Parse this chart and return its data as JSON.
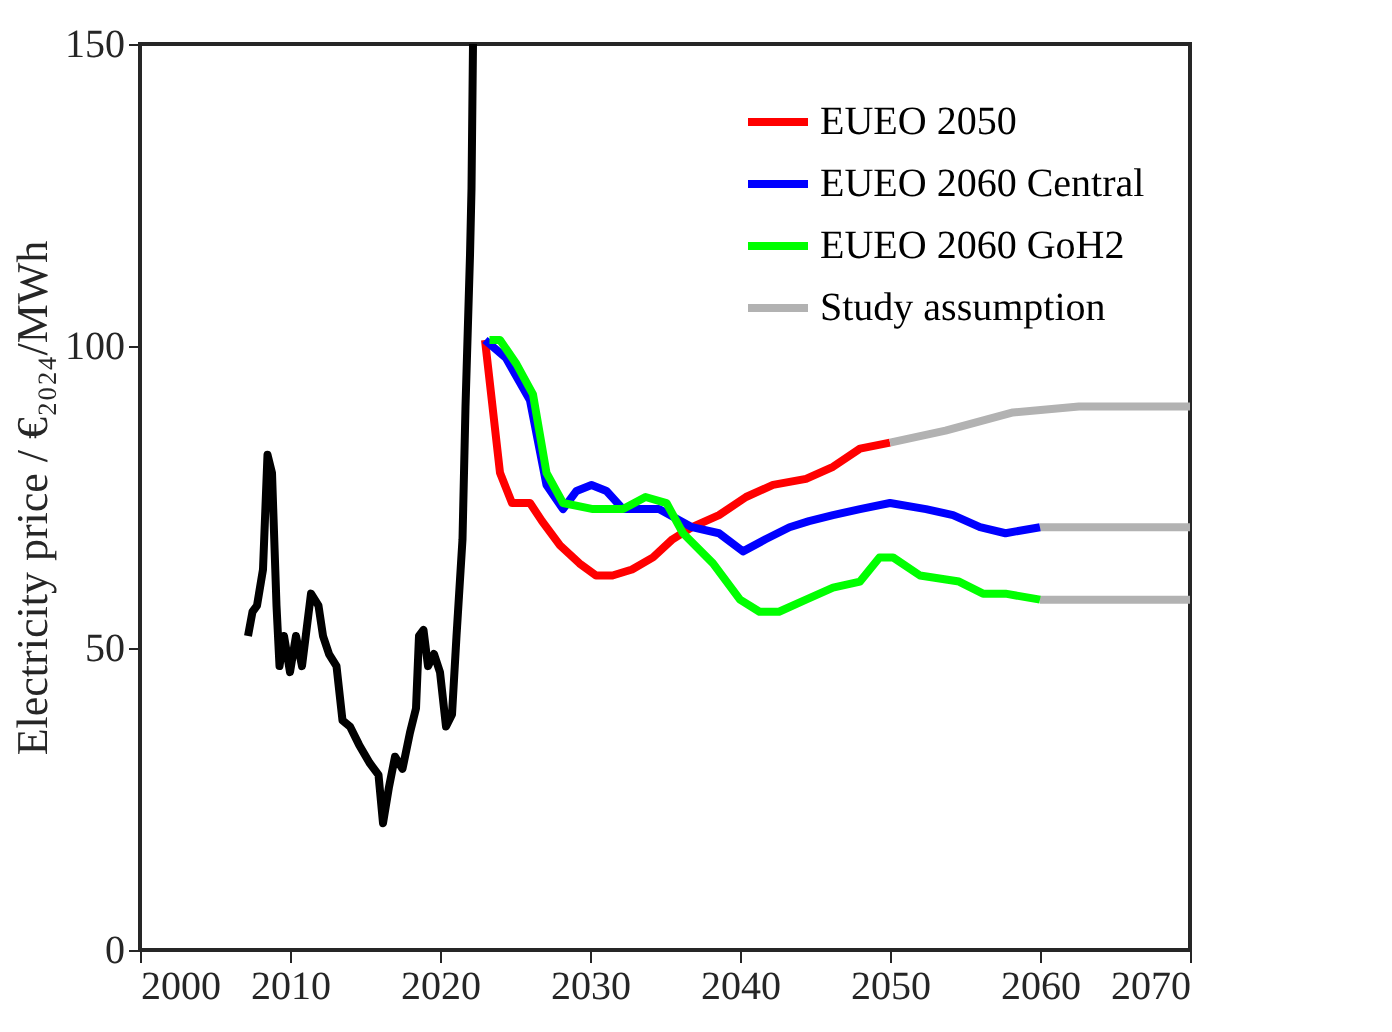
{
  "chart_data": {
    "type": "line",
    "ylabel": "Electricity price  / €₂₀₂₄/MWh",
    "xlim": [
      2000,
      2070
    ],
    "xticks": [
      2000,
      2010,
      2020,
      2030,
      2040,
      2050,
      2060,
      2070
    ],
    "ylim": [
      0,
      150
    ],
    "yticks": [
      0,
      50,
      100,
      150
    ],
    "grid": false,
    "legend": "top right",
    "marker": "none",
    "line_style": "solid",
    "series": [
      {
        "color": "#000000",
        "x": [
          2007.2,
          2007.5,
          2007.8,
          2008.2,
          2008.5,
          2008.8,
          2009.1,
          2009.3,
          2009.6,
          2010.0,
          2010.4,
          2010.8,
          2011.4,
          2011.9,
          2012.2,
          2012.6,
          2013.1,
          2013.5,
          2014.0,
          2014.6,
          2015.3,
          2015.9,
          2016.2,
          2016.6,
          2017.0,
          2017.5,
          2018.0,
          2018.4,
          2018.6,
          2018.9,
          2019.2,
          2019.6,
          2020.0,
          2020.4,
          2020.8,
          2021.1,
          2021.5,
          2021.7,
          2022.0,
          2022.1,
          2022.2
        ],
        "values": [
          52,
          56,
          57,
          63,
          82,
          79,
          57,
          47,
          52,
          46,
          52,
          47,
          59,
          57,
          52,
          49,
          47,
          38,
          37,
          34,
          31,
          29,
          21,
          27,
          32,
          30,
          36,
          40,
          52,
          53,
          47,
          49,
          46,
          37,
          39,
          52,
          68,
          90,
          115,
          126,
          150
        ]
      },
      {
        "name": "EUEO 2050",
        "color": "#ff0000",
        "x": [
          2023.0,
          2024.0,
          2024.8,
          2026.0,
          2026.8,
          2028.0,
          2029.3,
          2030.4,
          2031.5,
          2032.8,
          2034.2,
          2035.5,
          2036.8,
          2038.6,
          2040.4,
          2042.2,
          2044.4,
          2046.2,
          2048.0,
          2050.0
        ],
        "values": [
          101,
          79,
          74,
          74,
          71,
          67,
          64,
          62,
          62,
          63,
          65,
          68,
          70,
          72,
          75,
          77,
          78,
          80,
          83,
          84
        ]
      },
      {
        "name": "EUEO 2060 Central",
        "color": "#0000ff",
        "x": [
          2023.0,
          2024.4,
          2026.0,
          2027.1,
          2028.2,
          2029.1,
          2030.1,
          2031.1,
          2032.2,
          2034.6,
          2036.8,
          2038.6,
          2040.2,
          2041.7,
          2043.3,
          2044.6,
          2046.2,
          2048.0,
          2050.0,
          2052.4,
          2054.2,
          2056.0,
          2057.7,
          2060.0
        ],
        "values": [
          101,
          98,
          91,
          77,
          73,
          76,
          77,
          76,
          73,
          73,
          70,
          69,
          66,
          68,
          70,
          71,
          72,
          73,
          74,
          73,
          72,
          70,
          69,
          70
        ]
      },
      {
        "name": "EUEO 2060 GoH2",
        "color": "#00ff00",
        "x": [
          2023.3,
          2024.0,
          2025.1,
          2026.2,
          2027.1,
          2028.2,
          2030.2,
          2032.2,
          2033.7,
          2035.1,
          2036.2,
          2038.2,
          2040.0,
          2041.3,
          2042.6,
          2044.4,
          2046.2,
          2048.0,
          2049.3,
          2050.2,
          2052.0,
          2054.6,
          2056.2,
          2057.7,
          2060.0
        ],
        "values": [
          101,
          101,
          97,
          92,
          79,
          74,
          73,
          73,
          75,
          74,
          69,
          64,
          58,
          56,
          56,
          58,
          60,
          61,
          65,
          65,
          62,
          61,
          59,
          59,
          58
        ]
      },
      {
        "name": "Study assumption",
        "color": "#b2b2b2",
        "x": [
          2050.0,
          2053.7,
          2058.2,
          2062.6,
          2066.0,
          2070.0
        ],
        "values": [
          84,
          86,
          89,
          90,
          90,
          90
        ]
      },
      {
        "color": "#b2b2b2",
        "x": [
          2060,
          2070
        ],
        "values": [
          70,
          70
        ]
      },
      {
        "color": "#b2b2b2",
        "x": [
          2060,
          2070
        ],
        "values": [
          58,
          58
        ]
      }
    ]
  }
}
